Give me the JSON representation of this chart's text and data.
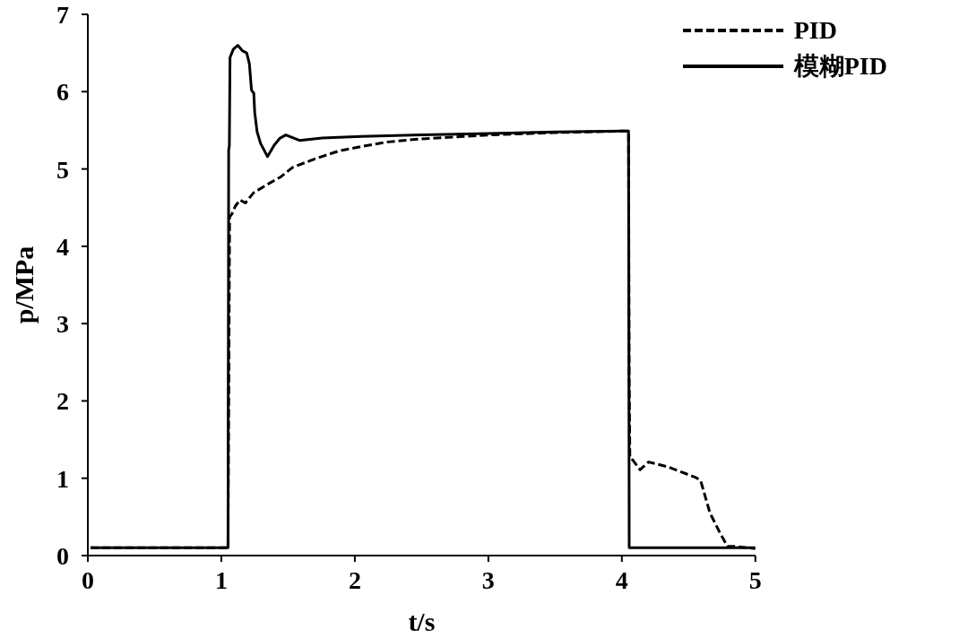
{
  "chart_data": {
    "type": "line",
    "xlabel": "t/s",
    "ylabel": "p/MPa",
    "xlim": [
      0,
      5
    ],
    "xticks": [
      0,
      1,
      2,
      3,
      4,
      5
    ],
    "ylim": [
      0,
      7
    ],
    "yticks": [
      0,
      1,
      2,
      3,
      4,
      5,
      6,
      7
    ],
    "grid": false,
    "legend": "top right",
    "marker": "none",
    "series": [
      {
        "name": "PID",
        "color": "#000000",
        "line_style": "dashed",
        "x": [
          0.02,
          1.05,
          1.058,
          1.062,
          1.08,
          1.105,
          1.139,
          1.18,
          1.24,
          1.344,
          1.447,
          1.533,
          1.7,
          1.875,
          2.046,
          2.25,
          2.5,
          3.0,
          3.5,
          4.0,
          4.05,
          4.055,
          4.06,
          4.075,
          4.137,
          4.2,
          4.34,
          4.553,
          4.59,
          4.66,
          4.73,
          4.79,
          4.84,
          5.0
        ],
        "values": [
          0.1,
          0.1,
          2.96,
          4.38,
          4.42,
          4.52,
          4.6,
          4.56,
          4.69,
          4.8,
          4.9,
          5.02,
          5.13,
          5.23,
          5.29,
          5.35,
          5.39,
          5.44,
          5.47,
          5.49,
          5.49,
          2.3,
          1.27,
          1.25,
          1.11,
          1.21,
          1.15,
          1.01,
          0.97,
          0.55,
          0.31,
          0.12,
          0.12,
          0.09
        ]
      },
      {
        "name": "模糊PID",
        "color": "#000000",
        "line_style": "solid",
        "x": [
          0.02,
          1.05,
          1.055,
          1.06,
          1.065,
          1.09,
          1.123,
          1.157,
          1.19,
          1.21,
          1.226,
          1.243,
          1.25,
          1.268,
          1.294,
          1.346,
          1.397,
          1.44,
          1.483,
          1.585,
          1.756,
          2.05,
          2.5,
          3.0,
          3.5,
          4.0,
          4.05,
          4.055,
          5.0
        ],
        "values": [
          0.1,
          0.1,
          5.25,
          5.3,
          6.44,
          6.55,
          6.6,
          6.53,
          6.5,
          6.36,
          6.02,
          5.98,
          5.73,
          5.48,
          5.33,
          5.16,
          5.31,
          5.4,
          5.44,
          5.37,
          5.4,
          5.42,
          5.44,
          5.46,
          5.48,
          5.49,
          5.49,
          0.1,
          0.1
        ]
      }
    ]
  }
}
